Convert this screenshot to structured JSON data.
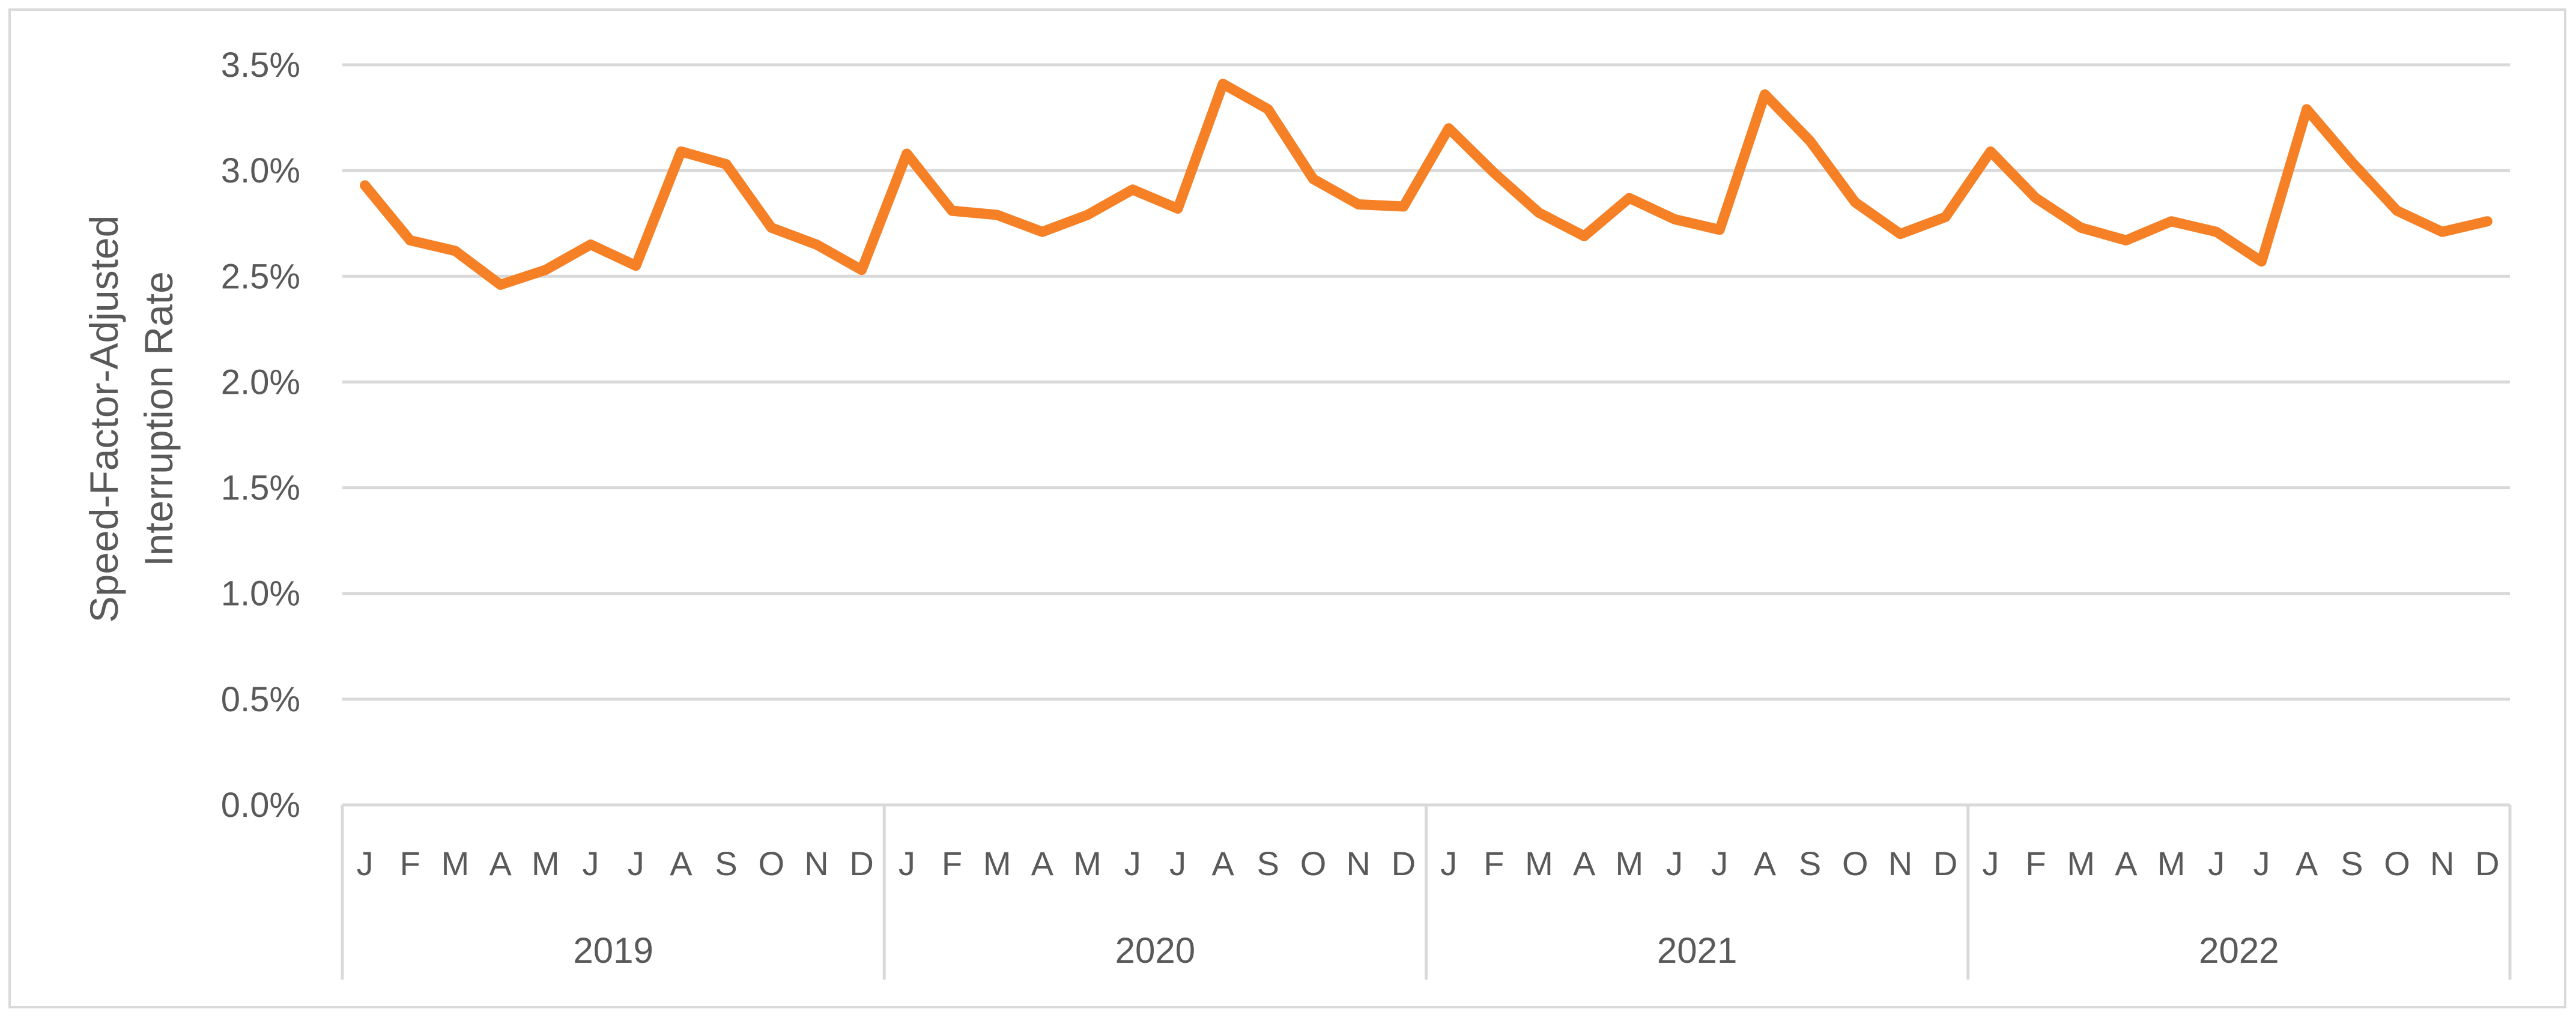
{
  "chart_data": {
    "type": "line",
    "title": "",
    "xlabel": "",
    "ylabel_lines": [
      "Speed-Factor-Adjusted",
      "Interruption Rate"
    ],
    "ylim": [
      0,
      0.035
    ],
    "y_ticks": [
      {
        "value": 0.0,
        "label": "0.0%"
      },
      {
        "value": 0.005,
        "label": "0.5%"
      },
      {
        "value": 0.01,
        "label": "1.0%"
      },
      {
        "value": 0.015,
        "label": "1.5%"
      },
      {
        "value": 0.02,
        "label": "2.0%"
      },
      {
        "value": 0.025,
        "label": "2.5%"
      },
      {
        "value": 0.03,
        "label": "3.0%"
      },
      {
        "value": 0.035,
        "label": "3.5%"
      }
    ],
    "grid": true,
    "legend": "none",
    "line_color": "#f58025",
    "grid_color": "#d9d9d9",
    "month_labels": [
      "J",
      "F",
      "M",
      "A",
      "M",
      "J",
      "J",
      "A",
      "S",
      "O",
      "N",
      "D"
    ],
    "years": [
      "2019",
      "2020",
      "2021",
      "2022"
    ],
    "series": [
      {
        "values": [
          0.0293,
          0.0267,
          0.0262,
          0.0246,
          0.0253,
          0.0265,
          0.0255,
          0.0309,
          0.0303,
          0.0273,
          0.0265,
          0.0253,
          0.0308,
          0.0281,
          0.0279,
          0.0271,
          0.0279,
          0.0291,
          0.0282,
          0.0341,
          0.0329,
          0.0296,
          0.0284,
          0.0283,
          0.032,
          0.0299,
          0.028,
          0.0269,
          0.0287,
          0.0277,
          0.0272,
          0.0336,
          0.0314,
          0.0285,
          0.027,
          0.0278,
          0.0309,
          0.0287,
          0.0273,
          0.0267,
          0.0276,
          0.0271,
          0.0257,
          0.0329,
          0.0304,
          0.0281,
          0.0271,
          0.0276
        ]
      }
    ]
  }
}
